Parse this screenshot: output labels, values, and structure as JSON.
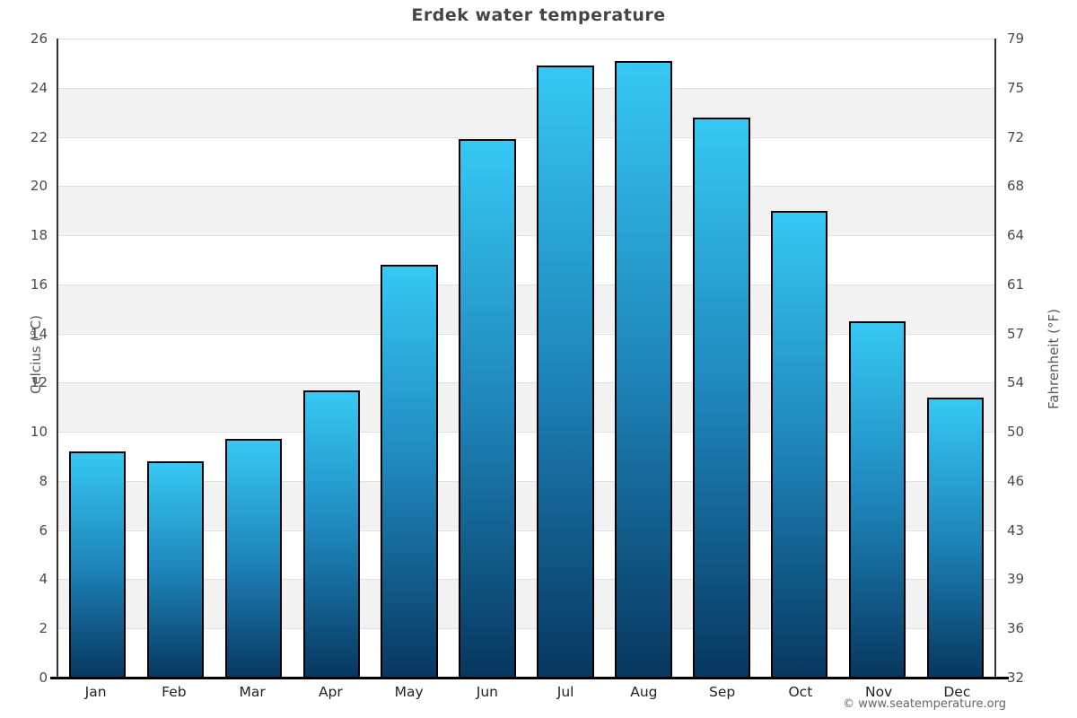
{
  "title": "Erdek water temperature",
  "footer": {
    "copyright": "© www.seatemperature.org"
  },
  "chart_data": {
    "type": "bar",
    "title": "Erdek water temperature",
    "categories": [
      "Jan",
      "Feb",
      "Mar",
      "Apr",
      "May",
      "Jun",
      "Jul",
      "Aug",
      "Sep",
      "Oct",
      "Nov",
      "Dec"
    ],
    "values": [
      9.2,
      8.8,
      9.7,
      11.7,
      16.8,
      21.9,
      24.9,
      25.1,
      22.8,
      19.0,
      14.5,
      11.4
    ],
    "ylabel_left": "Celcius (°C)",
    "ylabel_right": "Fahrenheit (°F)",
    "ylim_left": [
      0,
      26
    ],
    "ylim_right": [
      32,
      79
    ],
    "yticks_left": [
      0,
      2,
      4,
      6,
      8,
      10,
      12,
      14,
      16,
      18,
      20,
      22,
      24,
      26
    ],
    "yticks_right_labels": [
      "32",
      "36",
      "39",
      "43",
      "46",
      "50",
      "54",
      "57",
      "61",
      "64",
      "68",
      "72",
      "75",
      "79"
    ],
    "grid": "horizontal",
    "legend": "none",
    "colors": {
      "bar_gradient_top": "#36c8f4",
      "bar_gradient_mid": "#1e85ba",
      "bar_gradient_bottom": "#07375f",
      "bar_border": "#000000",
      "band_gray": "#f2f2f2",
      "gridline": "#e0e0e0",
      "axis_line": "#333333",
      "bottom_axis_line": "#000000",
      "title_text": "#454545",
      "tick_text": "#4a4a4a",
      "month_text": "#222222",
      "axis_title_text": "#595959",
      "footer_text": "#666666"
    }
  }
}
